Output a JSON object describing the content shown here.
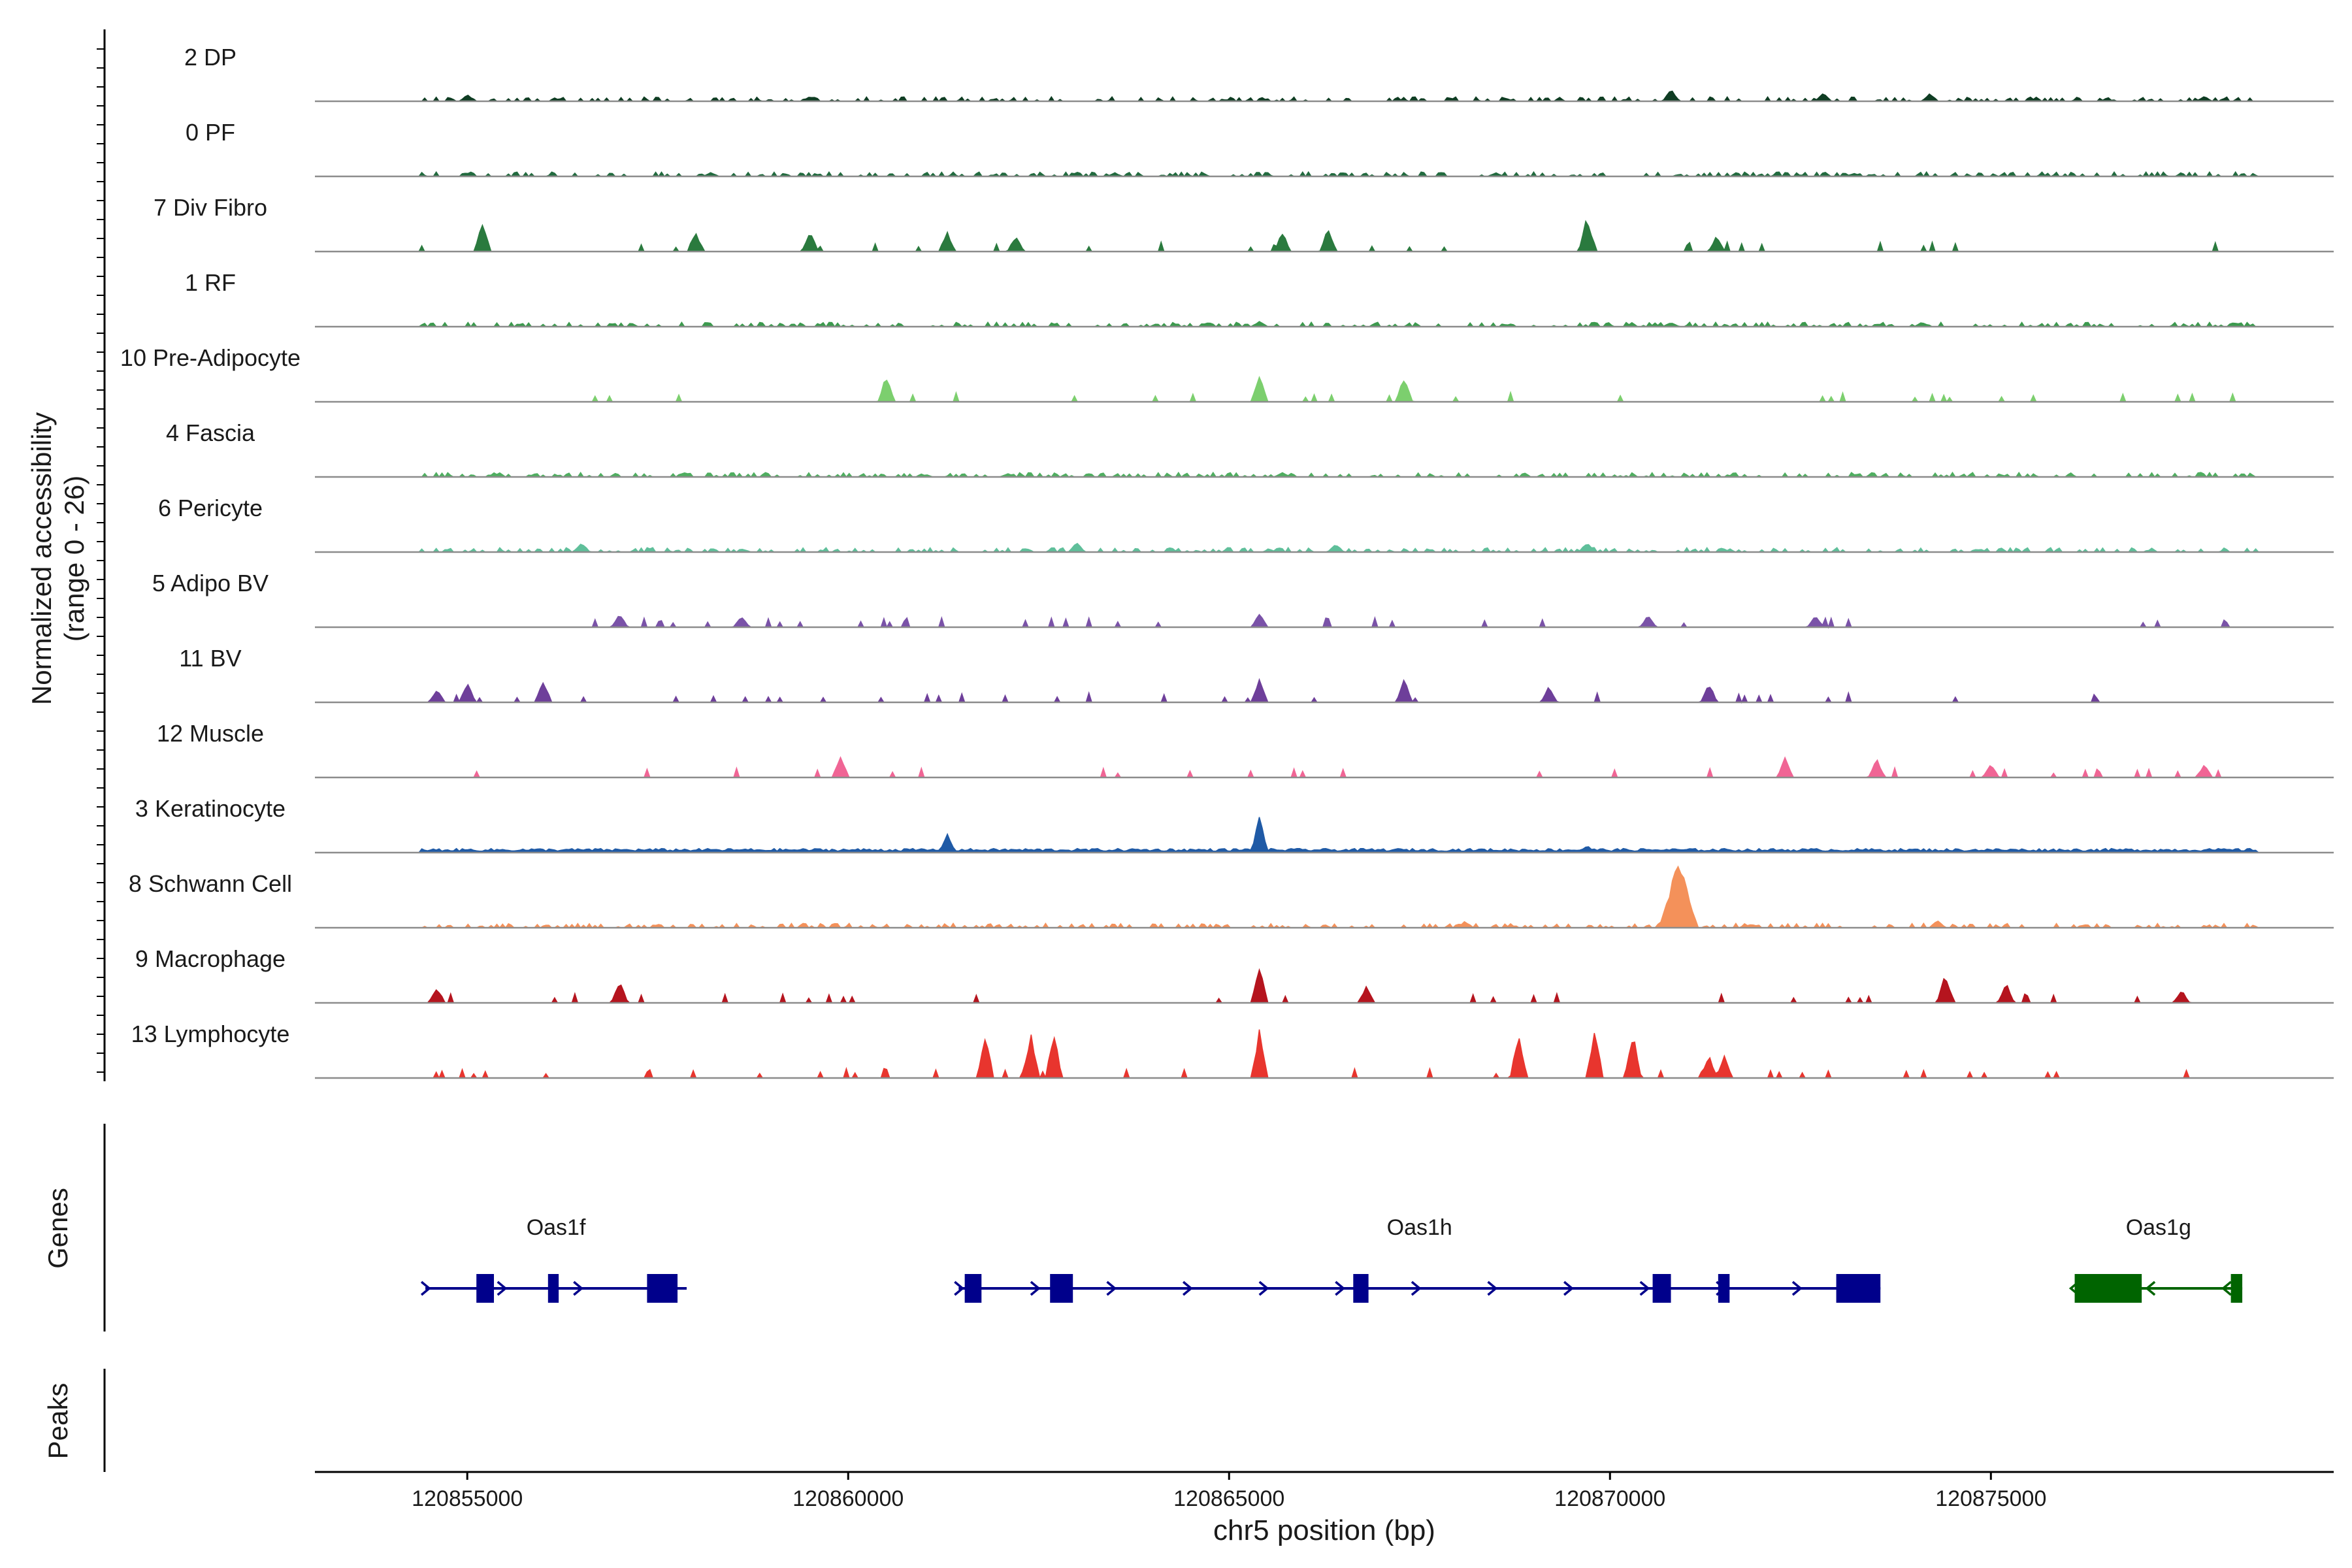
{
  "chart_data": {
    "type": "area",
    "title": "",
    "xlabel": "chr5 position (bp)",
    "ylabel": "Normalized accessibility",
    "ylabel_range": "(range 0 - 26)",
    "xlim": [
      120853000,
      120879500
    ],
    "ylim": [
      0,
      26
    ],
    "x_ticks": [
      {
        "value": 120855000,
        "label": "120855000"
      },
      {
        "value": 120860000,
        "label": "120860000"
      },
      {
        "value": 120865000,
        "label": "120865000"
      },
      {
        "value": 120870000,
        "label": "120870000"
      },
      {
        "value": 120875000,
        "label": "120875000"
      }
    ],
    "series": [
      {
        "name": "2 DP",
        "color": "#0f3d23",
        "profile": "sparse_low",
        "peaks": [
          [
            120855000,
            0.1
          ],
          [
            120859500,
            0.08
          ],
          [
            120870800,
            0.18
          ],
          [
            120872800,
            0.14
          ],
          [
            120874200,
            0.12
          ],
          [
            120877800,
            0.08
          ]
        ]
      },
      {
        "name": "0 PF",
        "color": "#226b3f",
        "profile": "sparse_low",
        "peaks": [
          [
            120858200,
            0.06
          ],
          [
            120863500,
            0.05
          ],
          [
            120868500,
            0.06
          ],
          [
            120873200,
            0.05
          ]
        ]
      },
      {
        "name": "7 Div Fibro",
        "color": "#2a7a3e",
        "profile": "blocks",
        "peaks": [
          [
            120855200,
            0.45
          ],
          [
            120858000,
            0.3
          ],
          [
            120859500,
            0.3
          ],
          [
            120861300,
            0.3
          ],
          [
            120862200,
            0.25
          ],
          [
            120865700,
            0.3
          ],
          [
            120866300,
            0.35
          ],
          [
            120869700,
            0.55
          ],
          [
            120871400,
            0.25
          ]
        ]
      },
      {
        "name": "1 RF",
        "color": "#3c9a4e",
        "profile": "sparse_low",
        "peaks": [
          [
            120865400,
            0.08
          ],
          [
            120870800,
            0.07
          ],
          [
            120874100,
            0.07
          ]
        ]
      },
      {
        "name": "10 Pre-Adipocyte",
        "color": "#7ccf6e",
        "profile": "blocks",
        "peaks": [
          [
            120860500,
            0.4
          ],
          [
            120865400,
            0.4
          ],
          [
            120867300,
            0.4
          ]
        ]
      },
      {
        "name": "4 Fascia",
        "color": "#4fae60",
        "profile": "sparse_low",
        "peaks": [
          [
            120865700,
            0.07
          ],
          [
            120862100,
            0.05
          ]
        ]
      },
      {
        "name": "6 Pericyte",
        "color": "#5fbf9a",
        "profile": "sparse_low",
        "peaks": [
          [
            120856500,
            0.15
          ],
          [
            120863000,
            0.15
          ],
          [
            120866400,
            0.12
          ],
          [
            120869700,
            0.15
          ]
        ]
      },
      {
        "name": "5 Adipo BV",
        "color": "#7a52a8",
        "profile": "blocks",
        "peaks": [
          [
            120857000,
            0.2
          ],
          [
            120858600,
            0.18
          ],
          [
            120865400,
            0.22
          ],
          [
            120870500,
            0.18
          ],
          [
            120872700,
            0.18
          ]
        ]
      },
      {
        "name": "11 BV",
        "color": "#6e3f9a",
        "profile": "blocks",
        "peaks": [
          [
            120854600,
            0.2
          ],
          [
            120855000,
            0.3
          ],
          [
            120856000,
            0.35
          ],
          [
            120865400,
            0.35
          ],
          [
            120867300,
            0.35
          ],
          [
            120869200,
            0.25
          ],
          [
            120871300,
            0.3
          ]
        ]
      },
      {
        "name": "12 Muscle",
        "color": "#f06595",
        "profile": "blocks",
        "peaks": [
          [
            120859900,
            0.35
          ],
          [
            120872300,
            0.3
          ],
          [
            120873500,
            0.3
          ],
          [
            120875000,
            0.2
          ],
          [
            120877800,
            0.2
          ]
        ]
      },
      {
        "name": "3 Keratinocyte",
        "color": "#1f5aa6",
        "profile": "dense_low",
        "peaks": [
          [
            120861300,
            0.3
          ],
          [
            120865400,
            0.55
          ],
          [
            120869700,
            0.12
          ]
        ]
      },
      {
        "name": "8 Schwann Cell",
        "color": "#f4915a",
        "profile": "sparse_low",
        "peaks": [
          [
            120870900,
            1.0
          ],
          [
            120874300,
            0.12
          ],
          [
            120868100,
            0.1
          ]
        ]
      },
      {
        "name": "9 Macrophage",
        "color": "#b5141e",
        "profile": "blocks",
        "peaks": [
          [
            120854600,
            0.25
          ],
          [
            120857000,
            0.35
          ],
          [
            120865400,
            0.55
          ],
          [
            120866800,
            0.25
          ],
          [
            120874400,
            0.45
          ],
          [
            120875200,
            0.3
          ],
          [
            120877500,
            0.2
          ]
        ]
      },
      {
        "name": "13 Lymphocyte",
        "color": "#e8352e",
        "profile": "blocks",
        "peaks": [
          [
            120861800,
            0.7
          ],
          [
            120862400,
            0.7
          ],
          [
            120862700,
            0.7
          ],
          [
            120865400,
            0.75
          ],
          [
            120868800,
            0.7
          ],
          [
            120869800,
            0.75
          ],
          [
            120870300,
            0.7
          ],
          [
            120871300,
            0.35
          ],
          [
            120871500,
            0.35
          ]
        ]
      }
    ],
    "genes_track": {
      "label": "Genes",
      "genes": [
        {
          "name": "Oas1f",
          "color": "#00008b",
          "strand": "+",
          "start": 120854450,
          "end": 120857880,
          "exons": [
            [
              120855120,
              120855350
            ],
            [
              120856060,
              120856200
            ],
            [
              120857360,
              120857760
            ]
          ]
        },
        {
          "name": "Oas1h",
          "color": "#00008b",
          "strand": "+",
          "start": 120861450,
          "end": 120873550,
          "exons": [
            [
              120861530,
              120861750
            ],
            [
              120862650,
              120862950
            ],
            [
              120866630,
              120866830
            ],
            [
              120870560,
              120870800
            ],
            [
              120871420,
              120871570
            ],
            [
              120872970,
              120873550
            ]
          ]
        },
        {
          "name": "Oas1g",
          "color": "#006400",
          "strand": "-",
          "start": 120876100,
          "end": 120878300,
          "exons": [
            [
              120876100,
              120876980
            ],
            [
              120878150,
              120878300
            ]
          ]
        }
      ]
    },
    "peaks_track": {
      "label": "Peaks",
      "regions": []
    }
  }
}
